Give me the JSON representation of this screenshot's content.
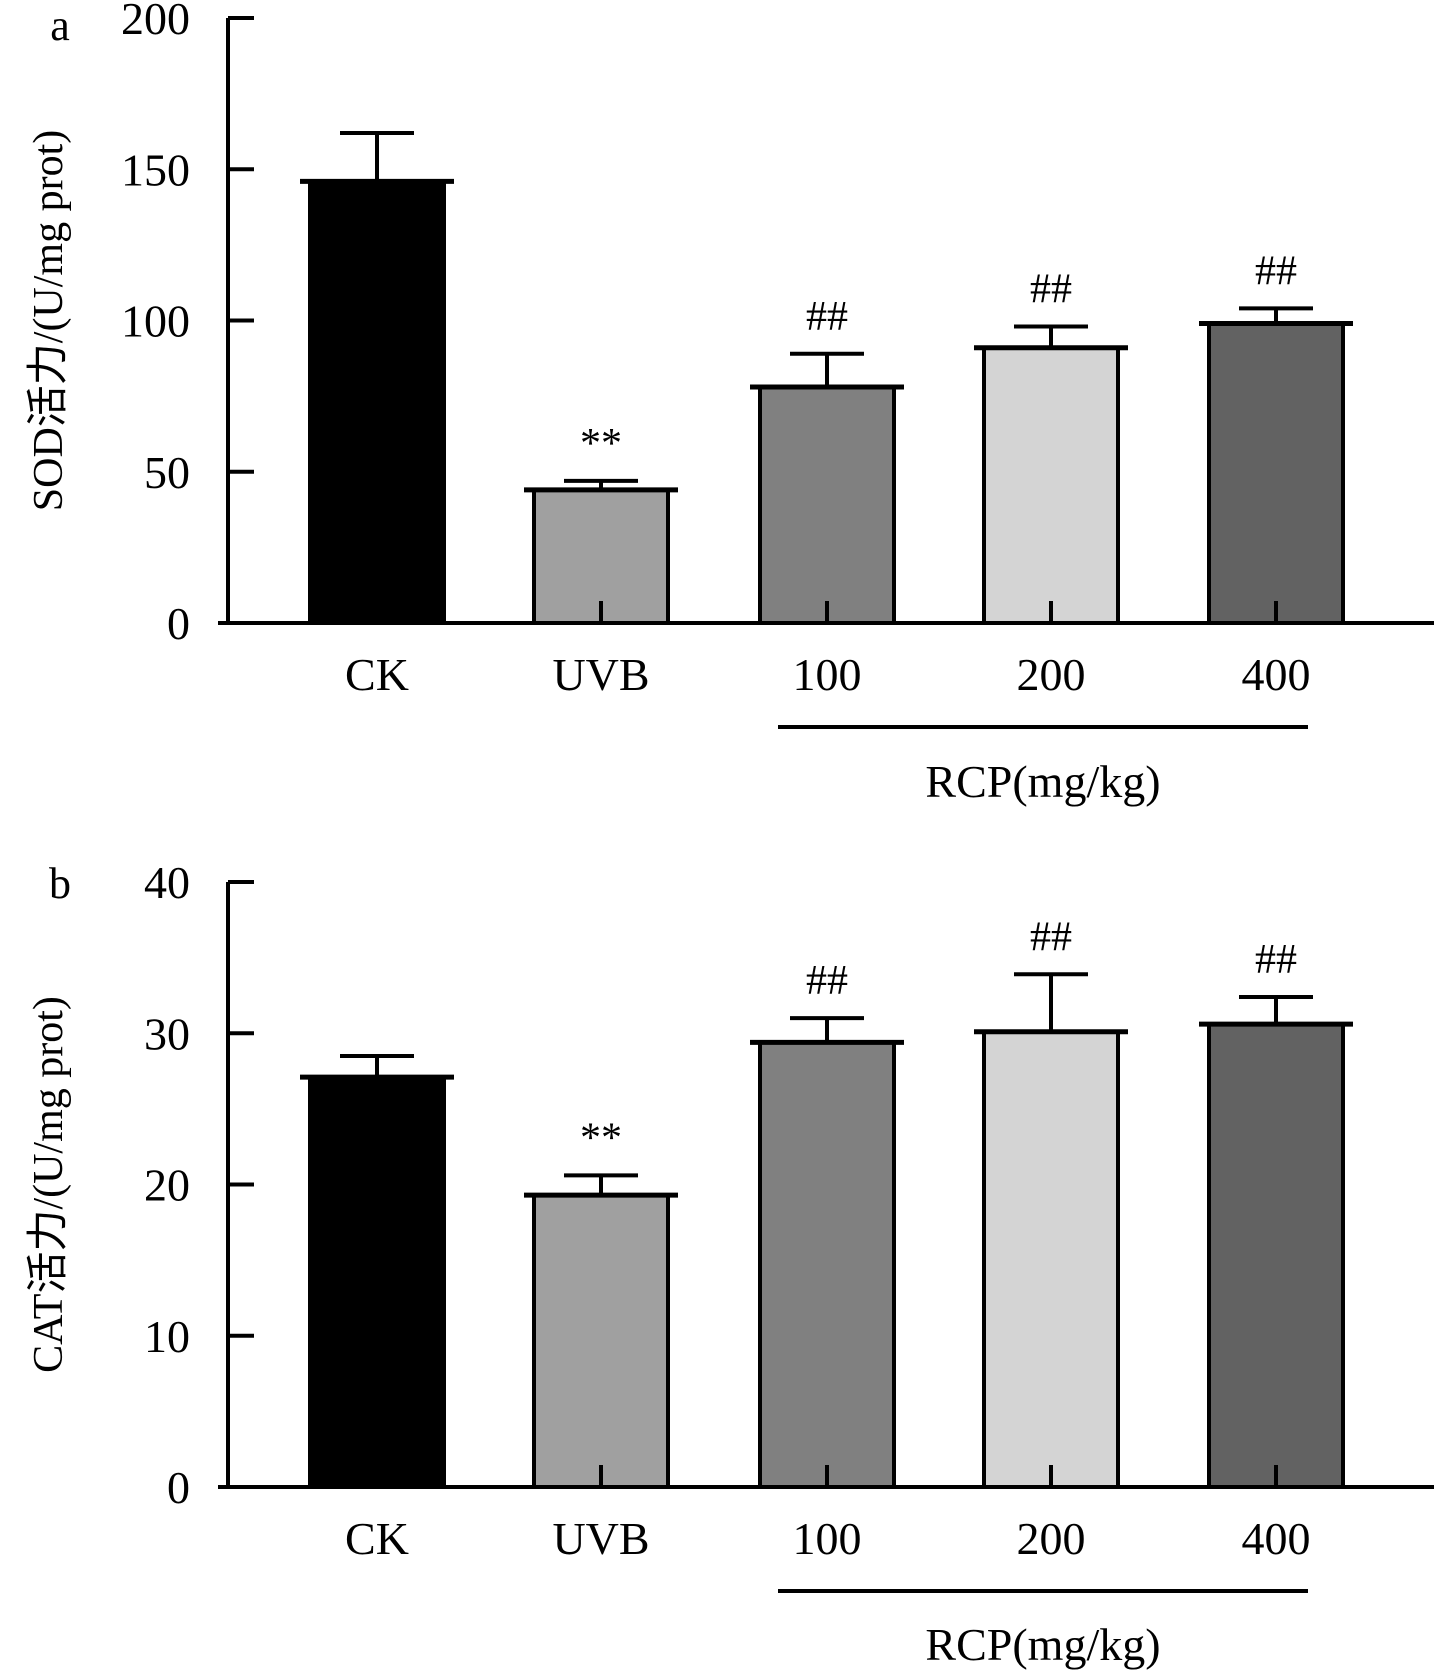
{
  "chart_data": [
    {
      "type": "bar",
      "panel": "a",
      "title": "",
      "xlabel": "RCP(mg/kg)",
      "xlabel_groups": [
        {
          "label": "RCP(mg/kg)",
          "spans": [
            "100",
            "200",
            "400"
          ]
        }
      ],
      "ylabel": "SOD活力/(U/mg prot)",
      "ylim": [
        0,
        200
      ],
      "yticks": [
        0,
        50,
        100,
        150,
        200
      ],
      "grid": false,
      "categories": [
        "CK",
        "UVB",
        "100",
        "200",
        "400"
      ],
      "values": [
        146,
        44,
        78,
        91,
        99
      ],
      "errors": [
        16,
        3,
        11,
        7,
        5
      ],
      "annotations": [
        "",
        "**",
        "##",
        "##",
        "##"
      ],
      "colors": [
        "#000000",
        "#a0a0a0",
        "#808080",
        "#d4d4d4",
        "#626262"
      ]
    },
    {
      "type": "bar",
      "panel": "b",
      "title": "",
      "xlabel": "RCP(mg/kg)",
      "xlabel_groups": [
        {
          "label": "RCP(mg/kg)",
          "spans": [
            "100",
            "200",
            "400"
          ]
        }
      ],
      "ylabel": "CAT活力/(U/mg prot)",
      "ylim": [
        0,
        40
      ],
      "yticks": [
        0,
        10,
        20,
        30,
        40
      ],
      "grid": false,
      "categories": [
        "CK",
        "UVB",
        "100",
        "200",
        "400"
      ],
      "values": [
        27.1,
        19.3,
        29.4,
        30.1,
        30.6
      ],
      "errors": [
        1.4,
        1.3,
        1.6,
        3.8,
        1.8
      ],
      "annotations": [
        "",
        "**",
        "##",
        "##",
        "##"
      ],
      "colors": [
        "#000000",
        "#a0a0a0",
        "#808080",
        "#d4d4d4",
        "#626262"
      ]
    }
  ]
}
